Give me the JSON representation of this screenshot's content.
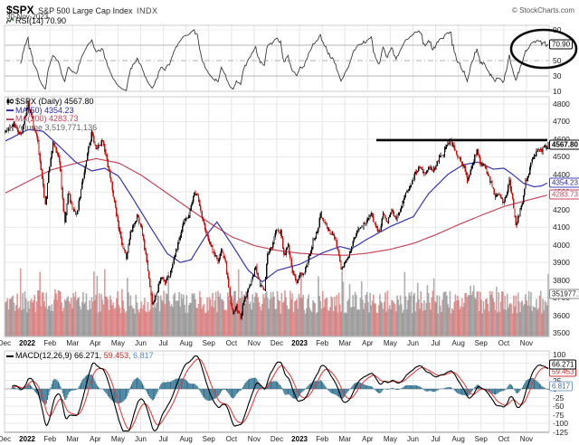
{
  "header": {
    "symbol": "$SPX",
    "name": "S&P 500 Large Cap Index",
    "exchange": "INDX",
    "date": "30-Nov-2023"
  },
  "credit": "© StockCharts.com",
  "rsi_panel": {
    "legend": "RSI(14) 70.90",
    "last_value": 70.9,
    "last_label": "70.90",
    "ticks": [
      90,
      50,
      30,
      10
    ],
    "overbought": 70,
    "oversold": 30,
    "midline": 50
  },
  "price_panel": {
    "legend_symbol": "$SPX (Daily) 4567.80",
    "legend_ma50": "MA(50) 4354.23",
    "legend_ma200": "MA(200) 4283.73",
    "legend_volume": "Volume 3,519,771,136",
    "ticks": [
      4800,
      4700,
      4600,
      4500,
      4400,
      4300,
      4200,
      4100,
      4000,
      3900,
      3800,
      3700,
      3600,
      3500
    ],
    "last_price": 4567.8,
    "last_price_label": "4567.80",
    "ma50": 4354.23,
    "ma50_label": "4354.23",
    "ma200": 4283.73,
    "ma200_label": "4283.73",
    "volume_label": "351977.1"
  },
  "macd_panel": {
    "legend_label": "MACD(12,26,9)",
    "macd_value_label": "66.271,",
    "signal_value_label": "59.453,",
    "hist_value_label": "6.817",
    "macd": 66.271,
    "signal": 59.453,
    "hist": 6.817,
    "ticks": [
      100,
      75,
      50,
      25,
      0,
      -25,
      -50,
      -75,
      -100,
      -125
    ]
  },
  "x_axis": {
    "months": [
      {
        "label": "Dec"
      },
      {
        "label": "2022",
        "bold": true
      },
      {
        "label": "Feb"
      },
      {
        "label": "Mar"
      },
      {
        "label": "Apr"
      },
      {
        "label": "May"
      },
      {
        "label": "Jun"
      },
      {
        "label": "Jul"
      },
      {
        "label": "Aug"
      },
      {
        "label": "Sep"
      },
      {
        "label": "Oct"
      },
      {
        "label": "Nov"
      },
      {
        "label": "Dec"
      },
      {
        "label": "2023",
        "bold": true
      },
      {
        "label": "Feb"
      },
      {
        "label": "Mar"
      },
      {
        "label": "Apr"
      },
      {
        "label": "May"
      },
      {
        "label": "Jun"
      },
      {
        "label": "Jul"
      },
      {
        "label": "Aug"
      },
      {
        "label": "Sep"
      },
      {
        "label": "Oct"
      },
      {
        "label": "Nov"
      }
    ]
  },
  "chart_data": {
    "type": "candlestick",
    "title": "$SPX S&P 500 Large Cap Index (Daily)",
    "date_range": "Dec-2021 to 30-Nov-2023",
    "y_axis": {
      "min": 3500,
      "max": 4800,
      "tick_step": 100
    },
    "days": 504,
    "indicators": {
      "rsi": {
        "period": 14,
        "last": 70.9,
        "overbought": 70,
        "oversold": 30
      },
      "ma50": {
        "last": 4354.23
      },
      "ma200": {
        "last": 4283.73
      },
      "macd": {
        "params": [
          12,
          26,
          9
        ],
        "last_macd": 66.271,
        "last_signal": 59.453,
        "last_hist": 6.817,
        "range": [
          -125,
          100
        ]
      },
      "volume": {
        "last": 3519771136,
        "axis_label": "351977.1"
      }
    },
    "annotations": {
      "resistance_line": {
        "level": 4600,
        "note": "thick black horizontal line, May 2023 to right edge"
      },
      "rsi_ellipse": {
        "note": "black ellipse circling RSI breakout above 70 at right edge"
      }
    },
    "price_anchors": [
      [
        0,
        4640
      ],
      [
        8,
        4680
      ],
      [
        14,
        4620
      ],
      [
        21,
        4796
      ],
      [
        26,
        4680
      ],
      [
        30,
        4580
      ],
      [
        37,
        4225
      ],
      [
        40,
        4410
      ],
      [
        44,
        4590
      ],
      [
        50,
        4480
      ],
      [
        55,
        4115
      ],
      [
        58,
        4300
      ],
      [
        62,
        4210
      ],
      [
        66,
        4170
      ],
      [
        74,
        4460
      ],
      [
        80,
        4630
      ],
      [
        84,
        4540
      ],
      [
        90,
        4590
      ],
      [
        97,
        4390
      ],
      [
        104,
        4130
      ],
      [
        108,
        4000
      ],
      [
        112,
        3930
      ],
      [
        116,
        4070
      ],
      [
        122,
        4160
      ],
      [
        126,
        4100
      ],
      [
        131,
        3900
      ],
      [
        136,
        3670
      ],
      [
        140,
        3720
      ],
      [
        144,
        3820
      ],
      [
        148,
        3790
      ],
      [
        152,
        3830
      ],
      [
        158,
        3960
      ],
      [
        165,
        4130
      ],
      [
        170,
        4170
      ],
      [
        175,
        4300
      ],
      [
        178,
        4280
      ],
      [
        183,
        4140
      ],
      [
        188,
        4030
      ],
      [
        193,
        3955
      ],
      [
        197,
        3910
      ],
      [
        200,
        3980
      ],
      [
        204,
        3900
      ],
      [
        208,
        3700
      ],
      [
        211,
        3610
      ],
      [
        214,
        3650
      ],
      [
        218,
        3590
      ],
      [
        221,
        3680
      ],
      [
        226,
        3760
      ],
      [
        229,
        3810
      ],
      [
        232,
        3870
      ],
      [
        236,
        3770
      ],
      [
        240,
        3750
      ],
      [
        243,
        3950
      ],
      [
        247,
        3990
      ],
      [
        251,
        4080
      ],
      [
        255,
        4075
      ],
      [
        258,
        3940
      ],
      [
        262,
        3990
      ],
      [
        266,
        3850
      ],
      [
        270,
        3790
      ],
      [
        273,
        3840
      ],
      [
        276,
        3830
      ],
      [
        280,
        3900
      ],
      [
        285,
        4020
      ],
      [
        289,
        4070
      ],
      [
        292,
        4180
      ],
      [
        296,
        4120
      ],
      [
        300,
        4080
      ],
      [
        304,
        4050
      ],
      [
        308,
        3980
      ],
      [
        311,
        3860
      ],
      [
        315,
        3910
      ],
      [
        319,
        3950
      ],
      [
        323,
        4030
      ],
      [
        327,
        4100
      ],
      [
        331,
        4110
      ],
      [
        335,
        4140
      ],
      [
        339,
        4170
      ],
      [
        342,
        4120
      ],
      [
        346,
        4070
      ],
      [
        350,
        4170
      ],
      [
        354,
        4130
      ],
      [
        358,
        4190
      ],
      [
        362,
        4150
      ],
      [
        366,
        4200
      ],
      [
        370,
        4280
      ],
      [
        375,
        4340
      ],
      [
        380,
        4410
      ],
      [
        384,
        4450
      ],
      [
        388,
        4400
      ],
      [
        392,
        4450
      ],
      [
        396,
        4410
      ],
      [
        400,
        4470
      ],
      [
        405,
        4510
      ],
      [
        409,
        4560
      ],
      [
        412,
        4600
      ],
      [
        416,
        4540
      ],
      [
        420,
        4500
      ],
      [
        424,
        4460
      ],
      [
        428,
        4370
      ],
      [
        432,
        4440
      ],
      [
        435,
        4500
      ],
      [
        437,
        4540
      ],
      [
        440,
        4470
      ],
      [
        444,
        4450
      ],
      [
        448,
        4380
      ],
      [
        451,
        4330
      ],
      [
        454,
        4275
      ],
      [
        458,
        4290
      ],
      [
        461,
        4230
      ],
      [
        464,
        4280
      ],
      [
        467,
        4360
      ],
      [
        470,
        4250
      ],
      [
        473,
        4120
      ],
      [
        476,
        4170
      ],
      [
        479,
        4240
      ],
      [
        482,
        4360
      ],
      [
        485,
        4410
      ],
      [
        488,
        4500
      ],
      [
        491,
        4510
      ],
      [
        494,
        4550
      ],
      [
        497,
        4540
      ],
      [
        500,
        4555
      ],
      [
        503,
        4568
      ]
    ],
    "ma50_anchors": [
      [
        0,
        4590
      ],
      [
        21,
        4655
      ],
      [
        35,
        4645
      ],
      [
        50,
        4560
      ],
      [
        65,
        4470
      ],
      [
        80,
        4420
      ],
      [
        92,
        4435
      ],
      [
        105,
        4390
      ],
      [
        120,
        4245
      ],
      [
        135,
        4095
      ],
      [
        150,
        3950
      ],
      [
        162,
        3900
      ],
      [
        172,
        3915
      ],
      [
        185,
        4045
      ],
      [
        196,
        4130
      ],
      [
        210,
        4000
      ],
      [
        225,
        3855
      ],
      [
        238,
        3790
      ],
      [
        252,
        3855
      ],
      [
        273,
        3890
      ],
      [
        294,
        3955
      ],
      [
        310,
        3990
      ],
      [
        320,
        3975
      ],
      [
        336,
        4035
      ],
      [
        357,
        4105
      ],
      [
        378,
        4160
      ],
      [
        392,
        4290
      ],
      [
        410,
        4400
      ],
      [
        424,
        4455
      ],
      [
        438,
        4470
      ],
      [
        452,
        4430
      ],
      [
        462,
        4435
      ],
      [
        470,
        4400
      ],
      [
        480,
        4350
      ],
      [
        490,
        4330
      ],
      [
        497,
        4335
      ],
      [
        503,
        4354
      ]
    ],
    "ma200_anchors": [
      [
        0,
        4295
      ],
      [
        21,
        4360
      ],
      [
        42,
        4425
      ],
      [
        63,
        4460
      ],
      [
        84,
        4490
      ],
      [
        105,
        4465
      ],
      [
        126,
        4395
      ],
      [
        147,
        4305
      ],
      [
        168,
        4215
      ],
      [
        189,
        4125
      ],
      [
        210,
        4045
      ],
      [
        231,
        3995
      ],
      [
        252,
        3968
      ],
      [
        273,
        3952
      ],
      [
        294,
        3945
      ],
      [
        315,
        3940
      ],
      [
        336,
        3953
      ],
      [
        357,
        3975
      ],
      [
        378,
        4008
      ],
      [
        399,
        4058
      ],
      [
        420,
        4115
      ],
      [
        441,
        4168
      ],
      [
        462,
        4218
      ],
      [
        483,
        4252
      ],
      [
        503,
        4284
      ]
    ]
  }
}
